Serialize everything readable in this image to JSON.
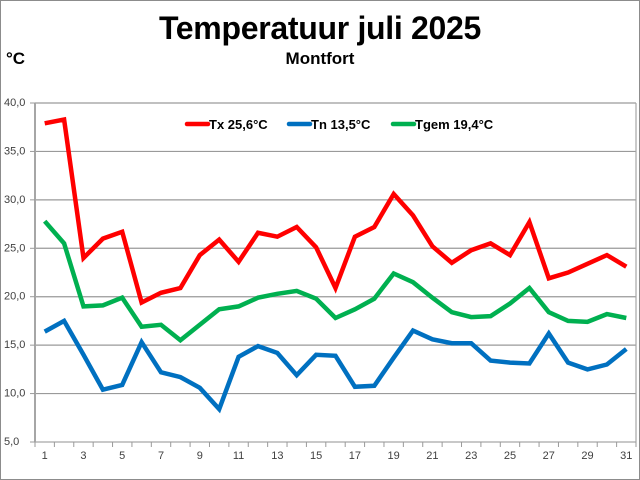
{
  "chart_data": {
    "type": "line",
    "title": "Temperatuur juli 2025",
    "subtitle": "Montfort",
    "ylabel": "°C",
    "xlabel": "",
    "ylim": [
      5,
      40
    ],
    "yticks": [
      5,
      10,
      15,
      20,
      25,
      30,
      35,
      40
    ],
    "ytick_labels": [
      "5,0",
      "10,0",
      "15,0",
      "20,0",
      "25,0",
      "30,0",
      "35,0",
      "40,0"
    ],
    "x": [
      1,
      2,
      3,
      4,
      5,
      6,
      7,
      8,
      9,
      10,
      11,
      12,
      13,
      14,
      15,
      16,
      17,
      18,
      19,
      20,
      21,
      22,
      23,
      24,
      25,
      26,
      27,
      28,
      29,
      30,
      31
    ],
    "xtick_labels": [
      "1",
      "3",
      "5",
      "7",
      "9",
      "11",
      "13",
      "15",
      "17",
      "19",
      "21",
      "23",
      "25",
      "27",
      "29",
      "31"
    ],
    "xtick_values": [
      1,
      3,
      5,
      7,
      9,
      11,
      13,
      15,
      17,
      19,
      21,
      23,
      25,
      27,
      29,
      31
    ],
    "grid": true,
    "legend_position": "top",
    "series": [
      {
        "name": "Tx 25,6°C",
        "color": "#ff0000",
        "values": [
          37.9,
          38.3,
          24.0,
          26.0,
          26.7,
          19.4,
          20.4,
          20.9,
          24.3,
          25.9,
          23.6,
          26.6,
          26.2,
          27.2,
          25.1,
          20.9,
          26.2,
          27.2,
          30.6,
          28.4,
          25.2,
          23.5,
          24.8,
          25.5,
          24.3,
          27.7,
          21.9,
          22.5,
          23.4,
          24.3,
          23.1
        ]
      },
      {
        "name": "Tn 13,5°C",
        "color": "#0070c0",
        "values": [
          16.4,
          17.5,
          14.0,
          10.4,
          10.9,
          15.3,
          12.2,
          11.7,
          10.6,
          8.4,
          13.8,
          14.9,
          14.2,
          11.9,
          14.0,
          13.9,
          10.7,
          10.8,
          13.7,
          16.5,
          15.6,
          15.2,
          15.2,
          13.4,
          13.2,
          13.1,
          16.2,
          13.2,
          12.5,
          13.0,
          14.6
        ]
      },
      {
        "name": "Tgem 19,4°C",
        "color": "#00b050",
        "values": [
          27.8,
          25.5,
          19.0,
          19.1,
          19.9,
          16.9,
          17.1,
          15.5,
          17.1,
          18.7,
          19.0,
          19.9,
          20.3,
          20.6,
          19.8,
          17.8,
          18.7,
          19.8,
          22.4,
          21.5,
          19.9,
          18.4,
          17.9,
          18.0,
          19.3,
          20.9,
          18.4,
          17.5,
          17.4,
          18.2,
          17.8
        ]
      }
    ]
  }
}
